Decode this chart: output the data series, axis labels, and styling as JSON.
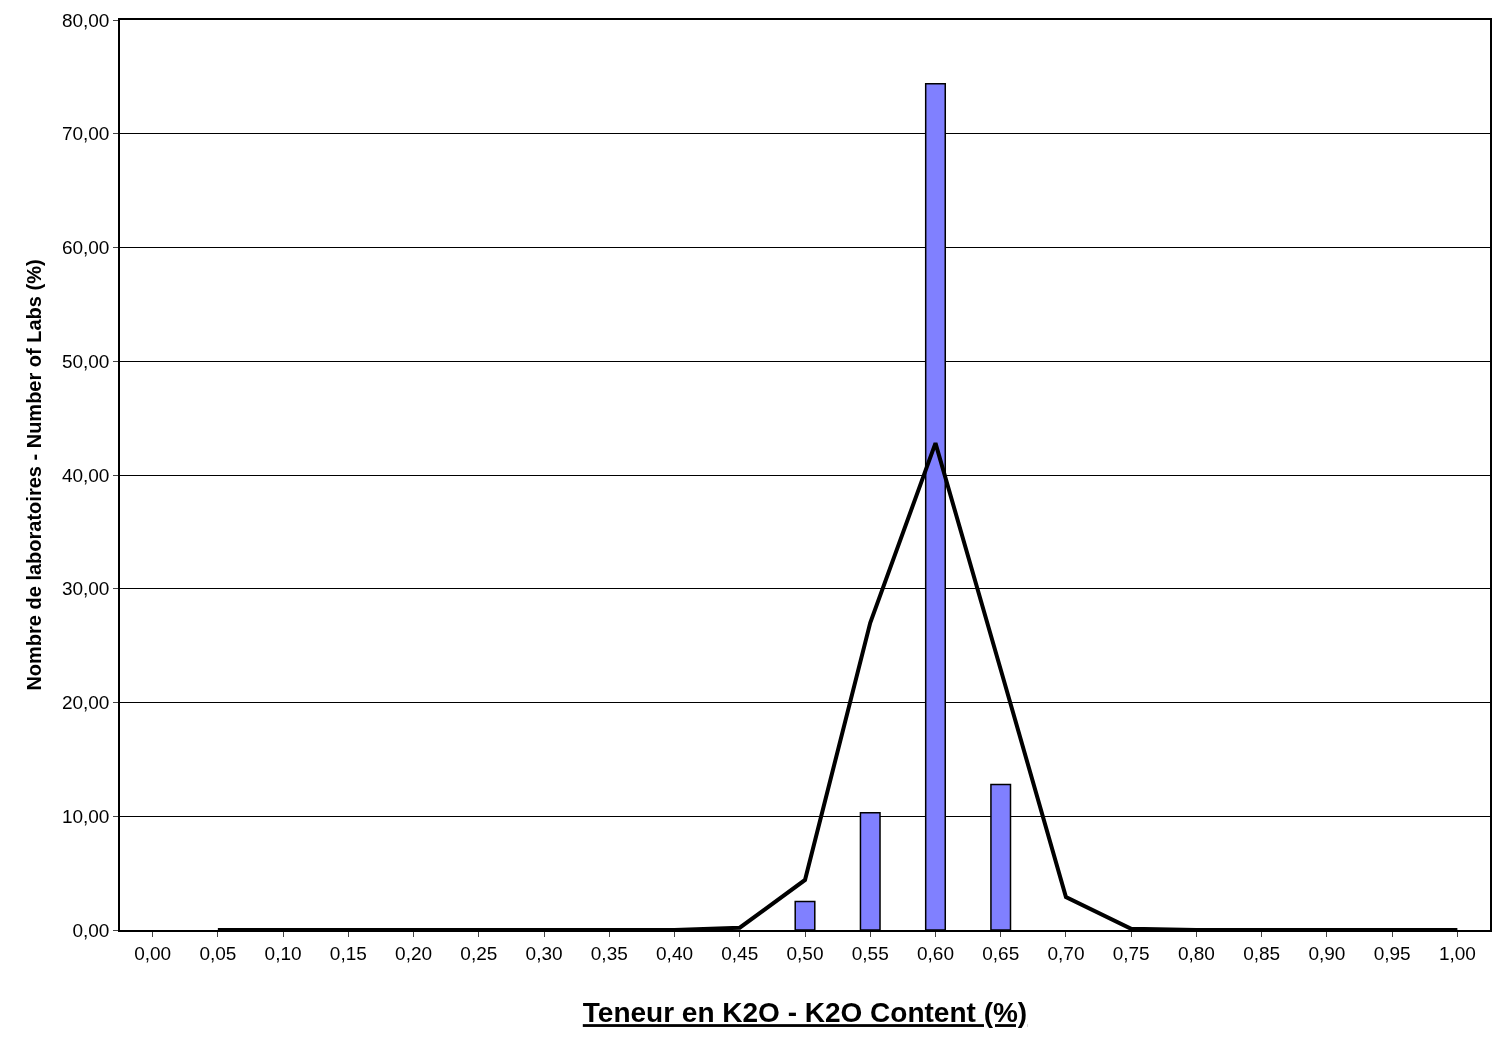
{
  "chart_data": {
    "type": "bar",
    "xlabel": "Teneur en K2O - K2O Content (%)",
    "ylabel": "Nombre de laboratoires - Number of Labs (%)",
    "categories": [
      "0,00",
      "0,05",
      "0,10",
      "0,15",
      "0,20",
      "0,25",
      "0,30",
      "0,35",
      "0,40",
      "0,45",
      "0,50",
      "0,55",
      "0,60",
      "0,65",
      "0,70",
      "0,75",
      "0,80",
      "0,85",
      "0,90",
      "0,95",
      "1,00"
    ],
    "series": [
      {
        "color": "#8080ff",
        "values": [
          null,
          null,
          null,
          null,
          null,
          null,
          null,
          null,
          null,
          null,
          2.5,
          10.3,
          74.4,
          12.8,
          null,
          null,
          null,
          null,
          null,
          null,
          null
        ]
      },
      {
        "type": "line",
        "color": "#000000",
        "values": [
          null,
          0,
          0,
          0,
          0,
          0,
          0,
          0,
          0,
          0.2,
          4.4,
          27.0,
          42.8,
          22.9,
          2.9,
          0.1,
          0,
          0,
          0,
          0,
          0
        ]
      }
    ],
    "ylim": [
      0,
      80
    ],
    "yticks": [
      {
        "value": 0,
        "label": "0,00"
      },
      {
        "value": 10,
        "label": "10,00"
      },
      {
        "value": 20,
        "label": "20,00"
      },
      {
        "value": 30,
        "label": "30,00"
      },
      {
        "value": 40,
        "label": "40,00"
      },
      {
        "value": 50,
        "label": "50,00"
      },
      {
        "value": 60,
        "label": "60,00"
      },
      {
        "value": 70,
        "label": "70,00"
      },
      {
        "value": 80,
        "label": "80,00"
      }
    ],
    "grid": "y",
    "legend": false,
    "marker": "none",
    "line_style": "solid"
  }
}
